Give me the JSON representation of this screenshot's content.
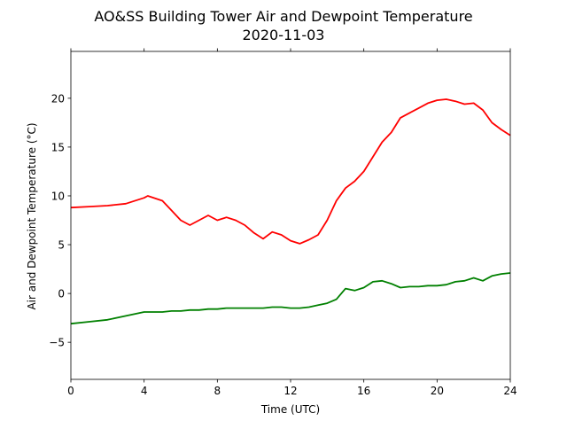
{
  "chart_data": {
    "type": "line",
    "title": "AO&SS Building Tower Air and Dewpoint Temperature",
    "subtitle": "2020-11-03",
    "xlabel": "Time (UTC)",
    "ylabel": "Air and Dewpoint Temperature (°C)",
    "xlim": [
      0,
      24
    ],
    "ylim": [
      -8.8,
      24.8
    ],
    "xticks": [
      0,
      4,
      8,
      12,
      16,
      20,
      24
    ],
    "yticks": [
      -5,
      0,
      5,
      10,
      15,
      20
    ],
    "grid": false,
    "colors": {
      "series_1": "#ff0000",
      "series_2": "#008000"
    },
    "x": [
      0,
      1,
      2,
      3,
      4,
      4.2,
      5,
      5.5,
      6,
      6.5,
      7,
      7.5,
      8,
      8.5,
      9,
      9.5,
      10,
      10.5,
      11,
      11.5,
      12,
      12.5,
      13,
      13.5,
      14,
      14.5,
      15,
      15.5,
      16,
      16.5,
      17,
      17.5,
      18,
      18.5,
      19,
      19.5,
      20,
      20.5,
      21,
      21.5,
      22,
      22.5,
      23,
      23.5,
      24
    ],
    "series": [
      {
        "values": [
          8.8,
          8.9,
          9.0,
          9.2,
          9.8,
          10.0,
          9.5,
          8.5,
          7.5,
          7.0,
          7.5,
          8.0,
          7.5,
          7.8,
          7.5,
          7.0,
          6.2,
          5.6,
          6.3,
          6.0,
          5.4,
          5.1,
          5.5,
          6.0,
          7.5,
          9.5,
          10.8,
          11.5,
          12.5,
          14.0,
          15.5,
          16.5,
          18.0,
          18.5,
          19.0,
          19.5,
          19.8,
          19.9,
          19.7,
          19.4,
          19.5,
          18.8,
          17.5,
          16.8,
          16.2
        ]
      },
      {
        "values": [
          -3.1,
          -2.9,
          -2.7,
          -2.3,
          -1.9,
          -1.9,
          -1.9,
          -1.8,
          -1.8,
          -1.7,
          -1.7,
          -1.6,
          -1.6,
          -1.5,
          -1.5,
          -1.5,
          -1.5,
          -1.5,
          -1.4,
          -1.4,
          -1.5,
          -1.5,
          -1.4,
          -1.2,
          -1.0,
          -0.6,
          0.5,
          0.3,
          0.6,
          1.2,
          1.3,
          1.0,
          0.6,
          0.7,
          0.7,
          0.8,
          0.8,
          0.9,
          1.2,
          1.3,
          1.6,
          1.3,
          1.8,
          2.0,
          2.1
        ]
      }
    ]
  }
}
